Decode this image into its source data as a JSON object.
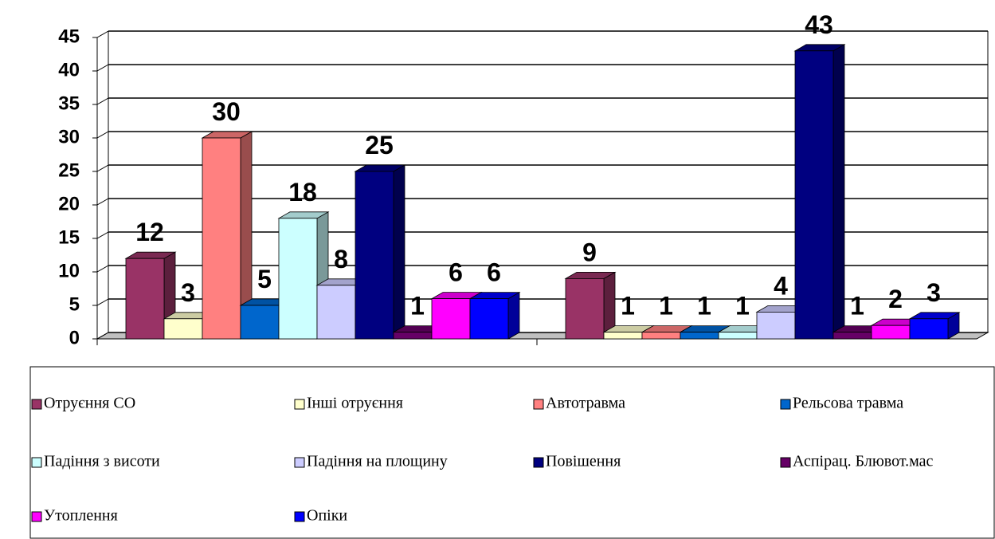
{
  "chart_data": {
    "type": "bar3d",
    "categories": [
      null,
      null
    ],
    "series": [
      {
        "name": "Отруєння СО",
        "color": "#993366",
        "values": [
          12,
          9
        ]
      },
      {
        "name": "Інші отруєння",
        "color": "#ffffcc",
        "values": [
          3,
          1
        ]
      },
      {
        "name": "Автотравма",
        "color": "#ff8080",
        "values": [
          30,
          1
        ]
      },
      {
        "name": "Рельсова травма",
        "color": "#0066cc",
        "values": [
          5,
          1
        ]
      },
      {
        "name": "Падіння з висоти",
        "color": "#ccffff",
        "values": [
          18,
          1
        ]
      },
      {
        "name": "Падіння на площину",
        "color": "#ccccff",
        "values": [
          8,
          4
        ]
      },
      {
        "name": "Повішення",
        "color": "#000080",
        "values": [
          25,
          43
        ]
      },
      {
        "name": "Аспірац. Блювот.мас",
        "color": "#660066",
        "values": [
          1,
          1
        ]
      },
      {
        "name": "Утоплення",
        "color": "#ff00ff",
        "values": [
          6,
          2
        ]
      },
      {
        "name": "Опіки",
        "color": "#0000ff",
        "values": [
          6,
          3
        ]
      }
    ],
    "ylim": [
      0,
      45
    ],
    "yticks": [
      0,
      5,
      10,
      15,
      20,
      25,
      30,
      35,
      40,
      45
    ],
    "grid": true
  }
}
